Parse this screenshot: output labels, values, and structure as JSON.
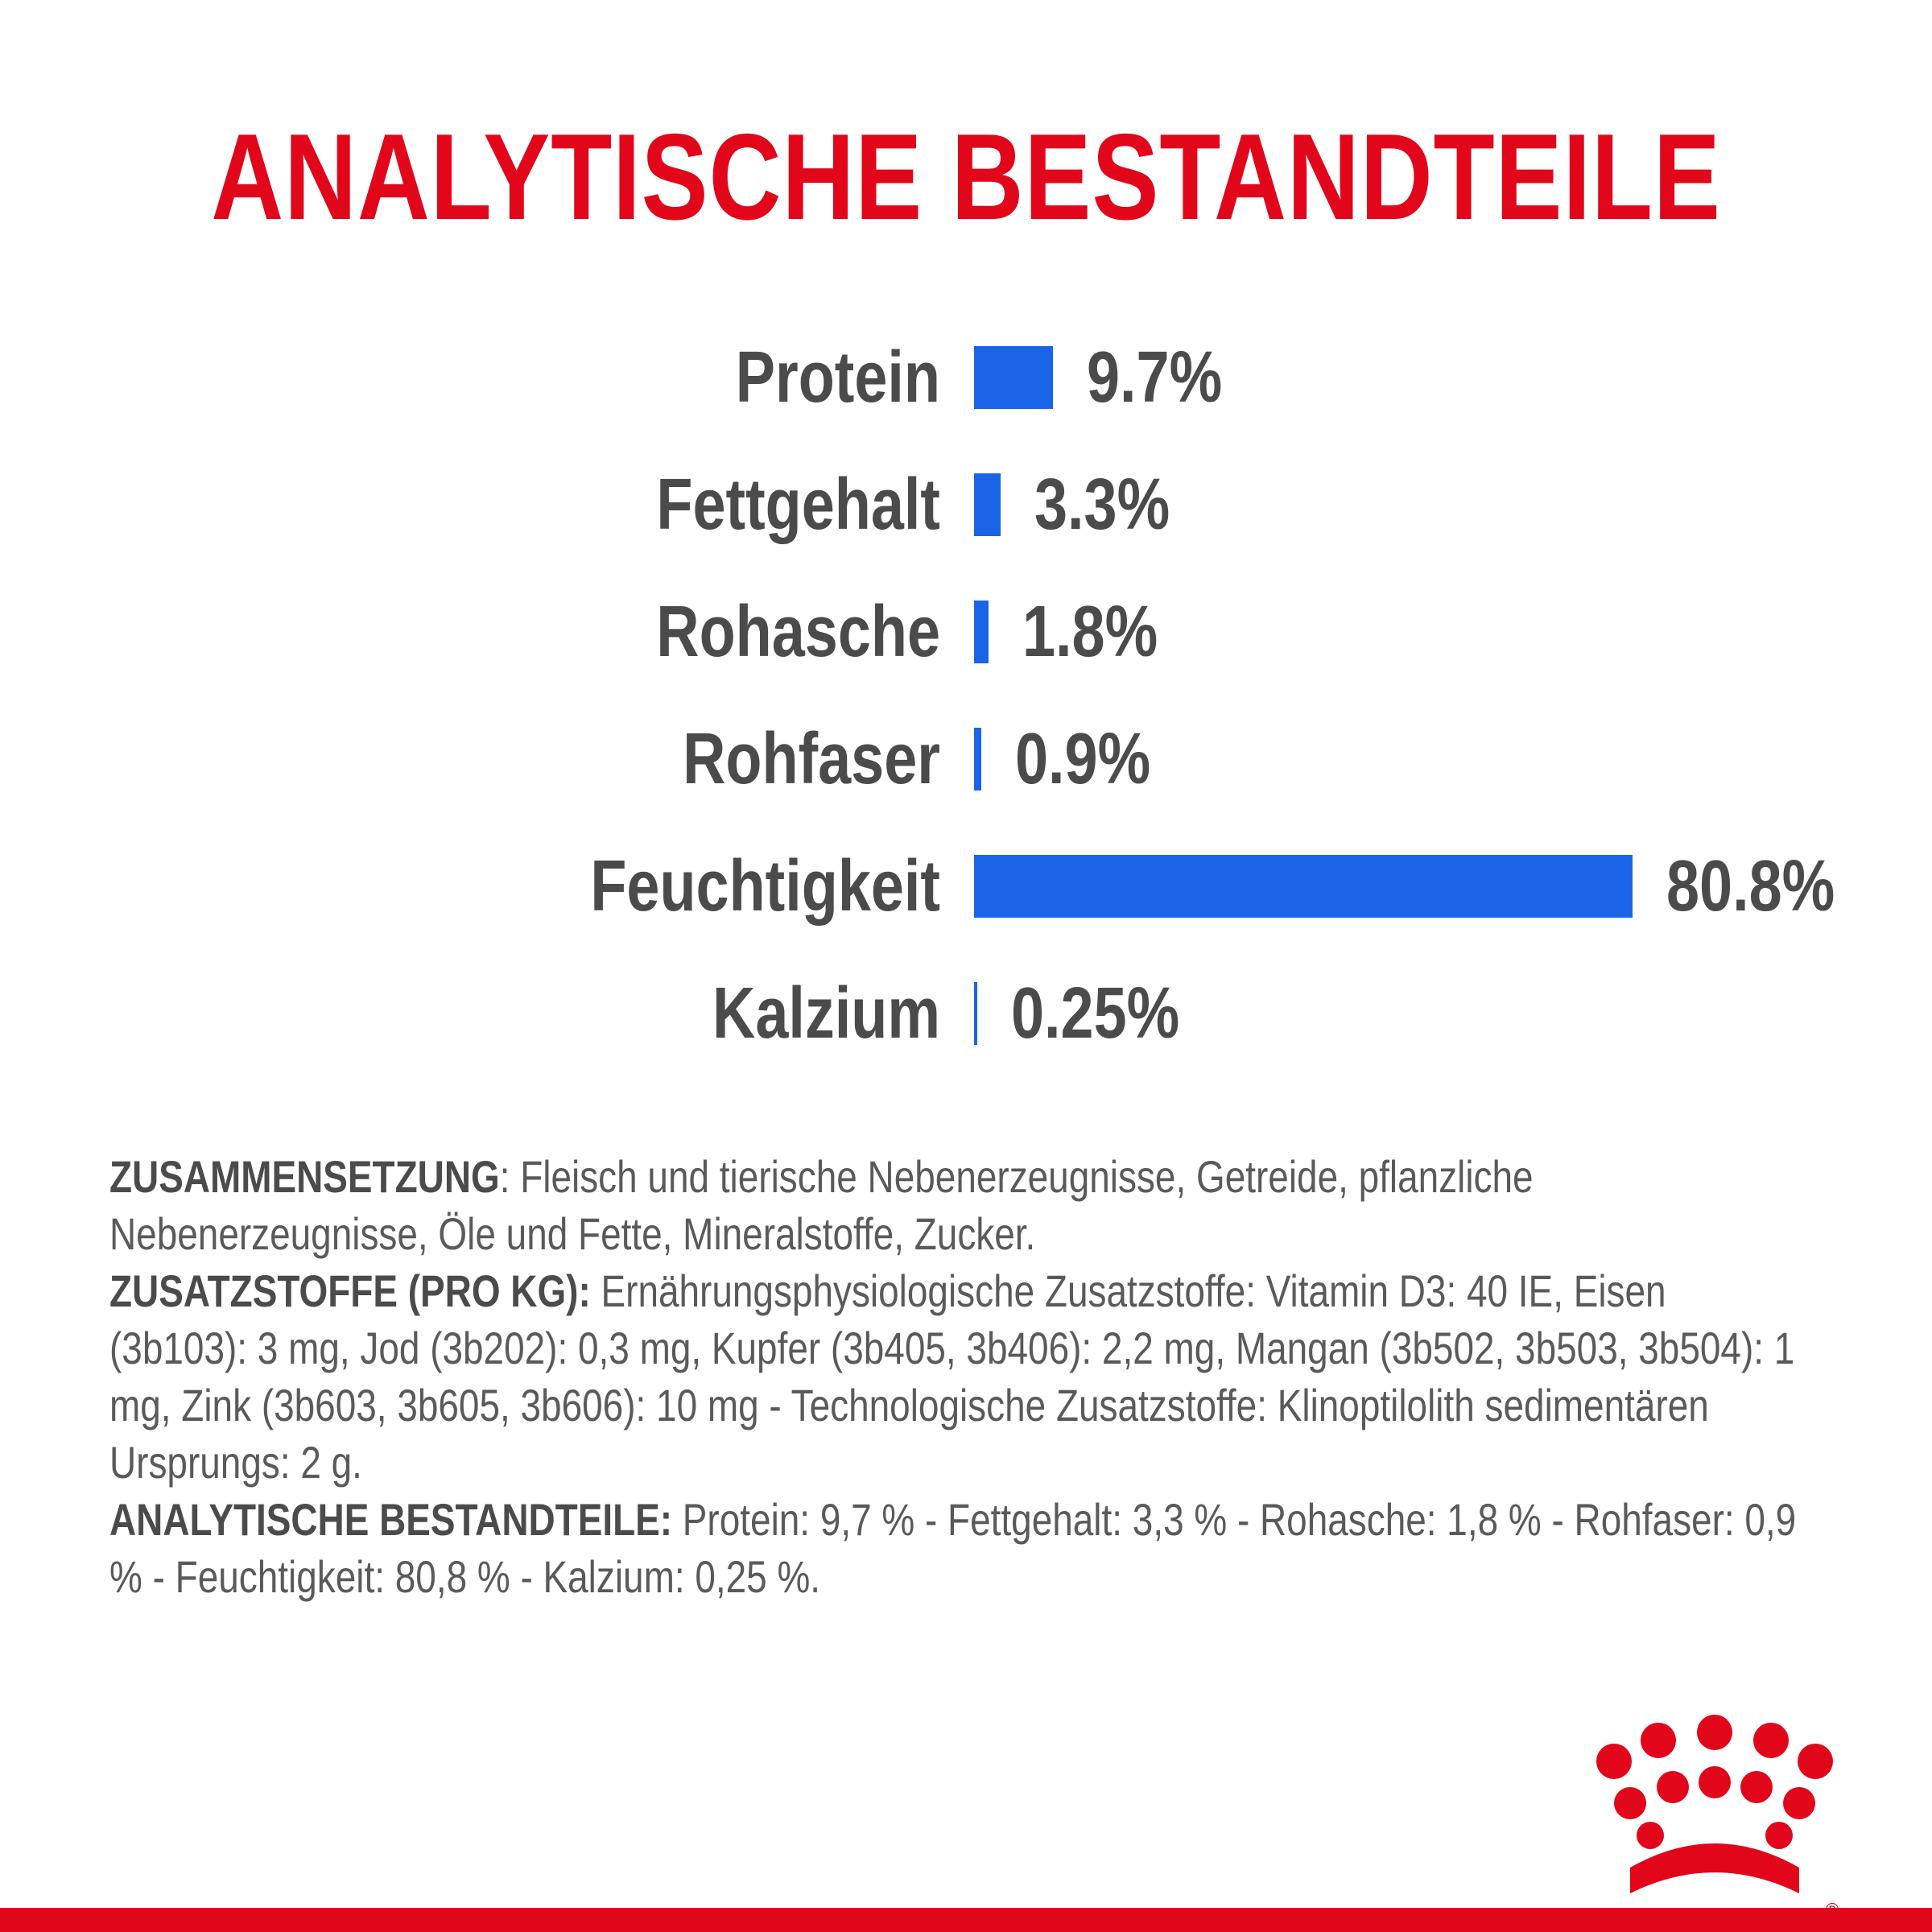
{
  "chart_data": {
    "type": "bar",
    "orientation": "horizontal",
    "title": "ANALYTISCHE BESTANDTEILE",
    "categories": [
      "Protein",
      "Fettgehalt",
      "Rohasche",
      "Rohfaser",
      "Feuchtigkeit",
      "Kalzium"
    ],
    "values": [
      9.7,
      3.3,
      1.8,
      0.9,
      80.8,
      0.25
    ],
    "value_labels": [
      "9.7%",
      "3.3%",
      "1.8%",
      "0.9%",
      "80.8%",
      "0.25%"
    ],
    "unit": "%",
    "xlim": [
      0,
      80.8
    ],
    "grid": false,
    "bar_color": "#1a64e8",
    "title_color": "#e2061a"
  },
  "composition": {
    "zusammensetzung_label": "ZUSAMMENSETZUNG",
    "zusammensetzung_text": ": Fleisch und tierische Nebenerzeugnisse, Getreide, pflanzliche Nebenerzeugnisse, Öle und Fette, Mineralstoffe, Zucker.",
    "zusatzstoffe_label": "ZUSATZSTOFFE (PRO KG):",
    "zusatzstoffe_text": " Ernährungsphysiologische Zusatzstoffe: Vitamin D3: 40 IE, Eisen (3b103): 3 mg, Jod (3b202): 0,3 mg, Kupfer (3b405, 3b406): 2,2 mg, Mangan (3b502, 3b503, 3b504): 1 mg, Zink (3b603, 3b605, 3b606): 10 mg - Technologische Zusatzstoffe: Klinoptilolith sedimentären Ursprungs: 2 g.",
    "analytische_label": "ANALYTISCHE BESTANDTEILE:",
    "analytische_text": " Protein: 9,7 % - Fettgehalt: 3,3 % - Rohasche: 1,8 % - Rohfaser: 0,9 % - Feuchtigkeit: 80,8 % - Kalzium: 0,25 %."
  },
  "logo": {
    "icon": "crown-logo-icon",
    "color": "#e2061a"
  },
  "accent_color": "#e2061a"
}
